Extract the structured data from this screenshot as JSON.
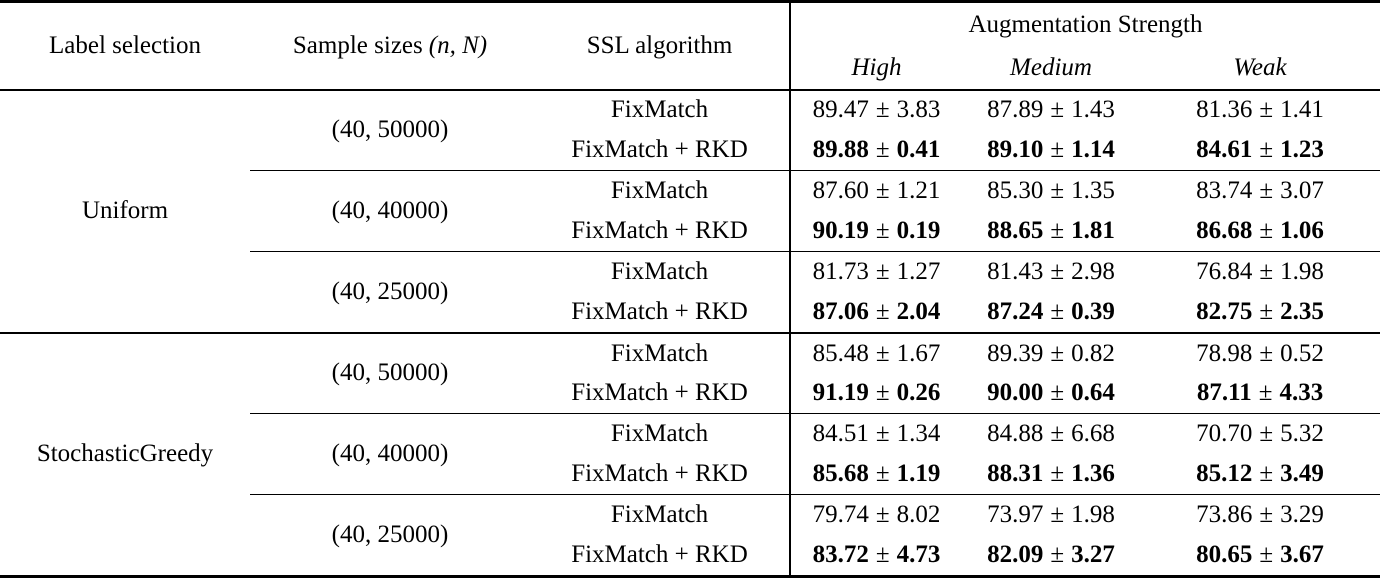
{
  "table": {
    "headers": {
      "label_selection": "Label selection",
      "sample_sizes_text": "Sample sizes",
      "sample_sizes_math": "(n, N)",
      "ssl_algorithm": "SSL algorithm",
      "augmentation_strength": "Augmentation Strength",
      "strength_levels": [
        "High",
        "Medium",
        "Weak"
      ]
    },
    "plus_minus": "±",
    "groups": [
      {
        "label_selection": "Uniform",
        "blocks": [
          {
            "sample_size": "(40, 50000)",
            "rows": [
              {
                "algorithm": "FixMatch",
                "bold": false,
                "values": [
                  {
                    "mean": "89.47",
                    "std": "3.83"
                  },
                  {
                    "mean": "87.89",
                    "std": "1.43"
                  },
                  {
                    "mean": "81.36",
                    "std": "1.41"
                  }
                ]
              },
              {
                "algorithm": "FixMatch + RKD",
                "bold": true,
                "values": [
                  {
                    "mean": "89.88",
                    "std": "0.41"
                  },
                  {
                    "mean": "89.10",
                    "std": "1.14"
                  },
                  {
                    "mean": "84.61",
                    "std": "1.23"
                  }
                ]
              }
            ]
          },
          {
            "sample_size": "(40, 40000)",
            "rows": [
              {
                "algorithm": "FixMatch",
                "bold": false,
                "values": [
                  {
                    "mean": "87.60",
                    "std": "1.21"
                  },
                  {
                    "mean": "85.30",
                    "std": "1.35"
                  },
                  {
                    "mean": "83.74",
                    "std": "3.07"
                  }
                ]
              },
              {
                "algorithm": "FixMatch + RKD",
                "bold": true,
                "values": [
                  {
                    "mean": "90.19",
                    "std": "0.19"
                  },
                  {
                    "mean": "88.65",
                    "std": "1.81"
                  },
                  {
                    "mean": "86.68",
                    "std": "1.06"
                  }
                ]
              }
            ]
          },
          {
            "sample_size": "(40, 25000)",
            "rows": [
              {
                "algorithm": "FixMatch",
                "bold": false,
                "values": [
                  {
                    "mean": "81.73",
                    "std": "1.27"
                  },
                  {
                    "mean": "81.43",
                    "std": "2.98"
                  },
                  {
                    "mean": "76.84",
                    "std": "1.98"
                  }
                ]
              },
              {
                "algorithm": "FixMatch + RKD",
                "bold": true,
                "values": [
                  {
                    "mean": "87.06",
                    "std": "2.04"
                  },
                  {
                    "mean": "87.24",
                    "std": "0.39"
                  },
                  {
                    "mean": "82.75",
                    "std": "2.35"
                  }
                ]
              }
            ]
          }
        ]
      },
      {
        "label_selection": "StochasticGreedy",
        "blocks": [
          {
            "sample_size": "(40, 50000)",
            "rows": [
              {
                "algorithm": "FixMatch",
                "bold": false,
                "values": [
                  {
                    "mean": "85.48",
                    "std": "1.67"
                  },
                  {
                    "mean": "89.39",
                    "std": "0.82"
                  },
                  {
                    "mean": "78.98",
                    "std": "0.52"
                  }
                ]
              },
              {
                "algorithm": "FixMatch + RKD",
                "bold": true,
                "values": [
                  {
                    "mean": "91.19",
                    "std": "0.26"
                  },
                  {
                    "mean": "90.00",
                    "std": "0.64"
                  },
                  {
                    "mean": "87.11",
                    "std": "4.33"
                  }
                ]
              }
            ]
          },
          {
            "sample_size": "(40, 40000)",
            "rows": [
              {
                "algorithm": "FixMatch",
                "bold": false,
                "values": [
                  {
                    "mean": "84.51",
                    "std": "1.34"
                  },
                  {
                    "mean": "84.88",
                    "std": "6.68"
                  },
                  {
                    "mean": "70.70",
                    "std": "5.32"
                  }
                ]
              },
              {
                "algorithm": "FixMatch + RKD",
                "bold": true,
                "values": [
                  {
                    "mean": "85.68",
                    "std": "1.19"
                  },
                  {
                    "mean": "88.31",
                    "std": "1.36"
                  },
                  {
                    "mean": "85.12",
                    "std": "3.49"
                  }
                ]
              }
            ]
          },
          {
            "sample_size": "(40, 25000)",
            "rows": [
              {
                "algorithm": "FixMatch",
                "bold": false,
                "values": [
                  {
                    "mean": "79.74",
                    "std": "8.02"
                  },
                  {
                    "mean": "73.97",
                    "std": "1.98"
                  },
                  {
                    "mean": "73.86",
                    "std": "3.29"
                  }
                ]
              },
              {
                "algorithm": "FixMatch + RKD",
                "bold": true,
                "values": [
                  {
                    "mean": "83.72",
                    "std": "4.73"
                  },
                  {
                    "mean": "82.09",
                    "std": "3.27"
                  },
                  {
                    "mean": "80.65",
                    "std": "3.67"
                  }
                ]
              }
            ]
          }
        ]
      }
    ]
  }
}
